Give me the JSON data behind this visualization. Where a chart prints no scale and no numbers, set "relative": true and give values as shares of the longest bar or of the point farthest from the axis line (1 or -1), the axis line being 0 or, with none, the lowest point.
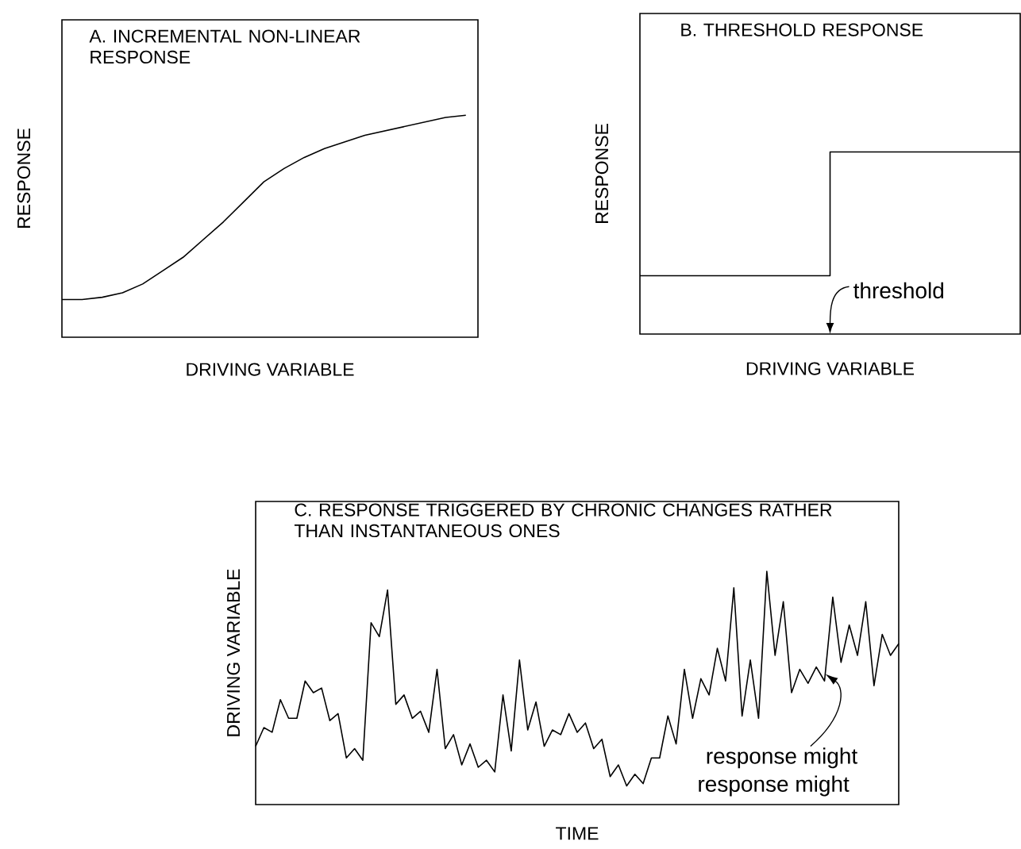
{
  "chart_data": [
    {
      "type": "line",
      "title": "A. INCREMENTAL NON-LINEAR RESPONSE",
      "xlabel": "DRIVING VARIABLE",
      "ylabel": "RESPONSE",
      "relative": true,
      "color": "#000000",
      "categories": [
        null,
        null,
        null,
        null,
        null,
        null,
        null,
        null,
        null,
        null,
        null,
        null,
        null,
        null,
        null,
        null,
        null,
        null,
        null,
        null,
        null
      ],
      "values": [
        0.17,
        0.17,
        0.18,
        0.2,
        0.24,
        0.3,
        0.36,
        0.44,
        0.52,
        0.61,
        0.7,
        0.76,
        0.81,
        0.85,
        0.88,
        0.91,
        0.93,
        0.95,
        0.97,
        0.99,
        1.0
      ]
    },
    {
      "type": "step",
      "title": "B. THRESHOLD RESPONSE",
      "xlabel": "DRIVING VARIABLE",
      "ylabel": "RESPONSE",
      "relative": true,
      "color": "#000000",
      "categories": [
        null,
        null,
        null
      ],
      "values": [
        0.32,
        1.0,
        1.0
      ],
      "annotations": [
        "threshold"
      ]
    },
    {
      "type": "line",
      "title": "C. RESPONSE TRIGGERED BY CHRONIC CHANGES RATHER THAN INSTANTANEOUS ONES",
      "xlabel": "TIME",
      "ylabel": "DRIVING VARIABLE",
      "relative": true,
      "color": "#000000",
      "categories": [
        null,
        null,
        null,
        null,
        null,
        null,
        null,
        null,
        null,
        null,
        null,
        null,
        null,
        null,
        null,
        null,
        null,
        null,
        null,
        null,
        null,
        null,
        null,
        null,
        null,
        null,
        null,
        null,
        null,
        null,
        null,
        null,
        null,
        null,
        null,
        null,
        null,
        null,
        null,
        null,
        null,
        null,
        null,
        null,
        null,
        null,
        null,
        null,
        null,
        null,
        null,
        null,
        null,
        null,
        null,
        null,
        null,
        null,
        null,
        null,
        null,
        null,
        null,
        null,
        null,
        null,
        null,
        null,
        null,
        null,
        null,
        null,
        null,
        null,
        null,
        null,
        null,
        null,
        null
      ],
      "values": [
        0.25,
        0.33,
        0.31,
        0.45,
        0.37,
        0.37,
        0.53,
        0.48,
        0.5,
        0.36,
        0.39,
        0.2,
        0.24,
        0.19,
        0.78,
        0.72,
        0.92,
        0.43,
        0.47,
        0.37,
        0.4,
        0.31,
        0.58,
        0.24,
        0.3,
        0.17,
        0.26,
        0.16,
        0.19,
        0.14,
        0.47,
        0.23,
        0.62,
        0.32,
        0.44,
        0.25,
        0.32,
        0.3,
        0.39,
        0.31,
        0.35,
        0.24,
        0.28,
        0.12,
        0.17,
        0.08,
        0.13,
        0.09,
        0.2,
        0.2,
        0.38,
        0.26,
        0.58,
        0.37,
        0.54,
        0.47,
        0.67,
        0.53,
        0.93,
        0.38,
        0.62,
        0.37,
        1.0,
        0.64,
        0.87,
        0.48,
        0.58,
        0.52,
        0.59,
        0.53,
        0.89,
        0.61,
        0.77,
        0.64,
        0.87,
        0.51,
        0.73,
        0.64,
        0.69
      ],
      "annotations": [
        "response might",
        "response might"
      ]
    }
  ]
}
